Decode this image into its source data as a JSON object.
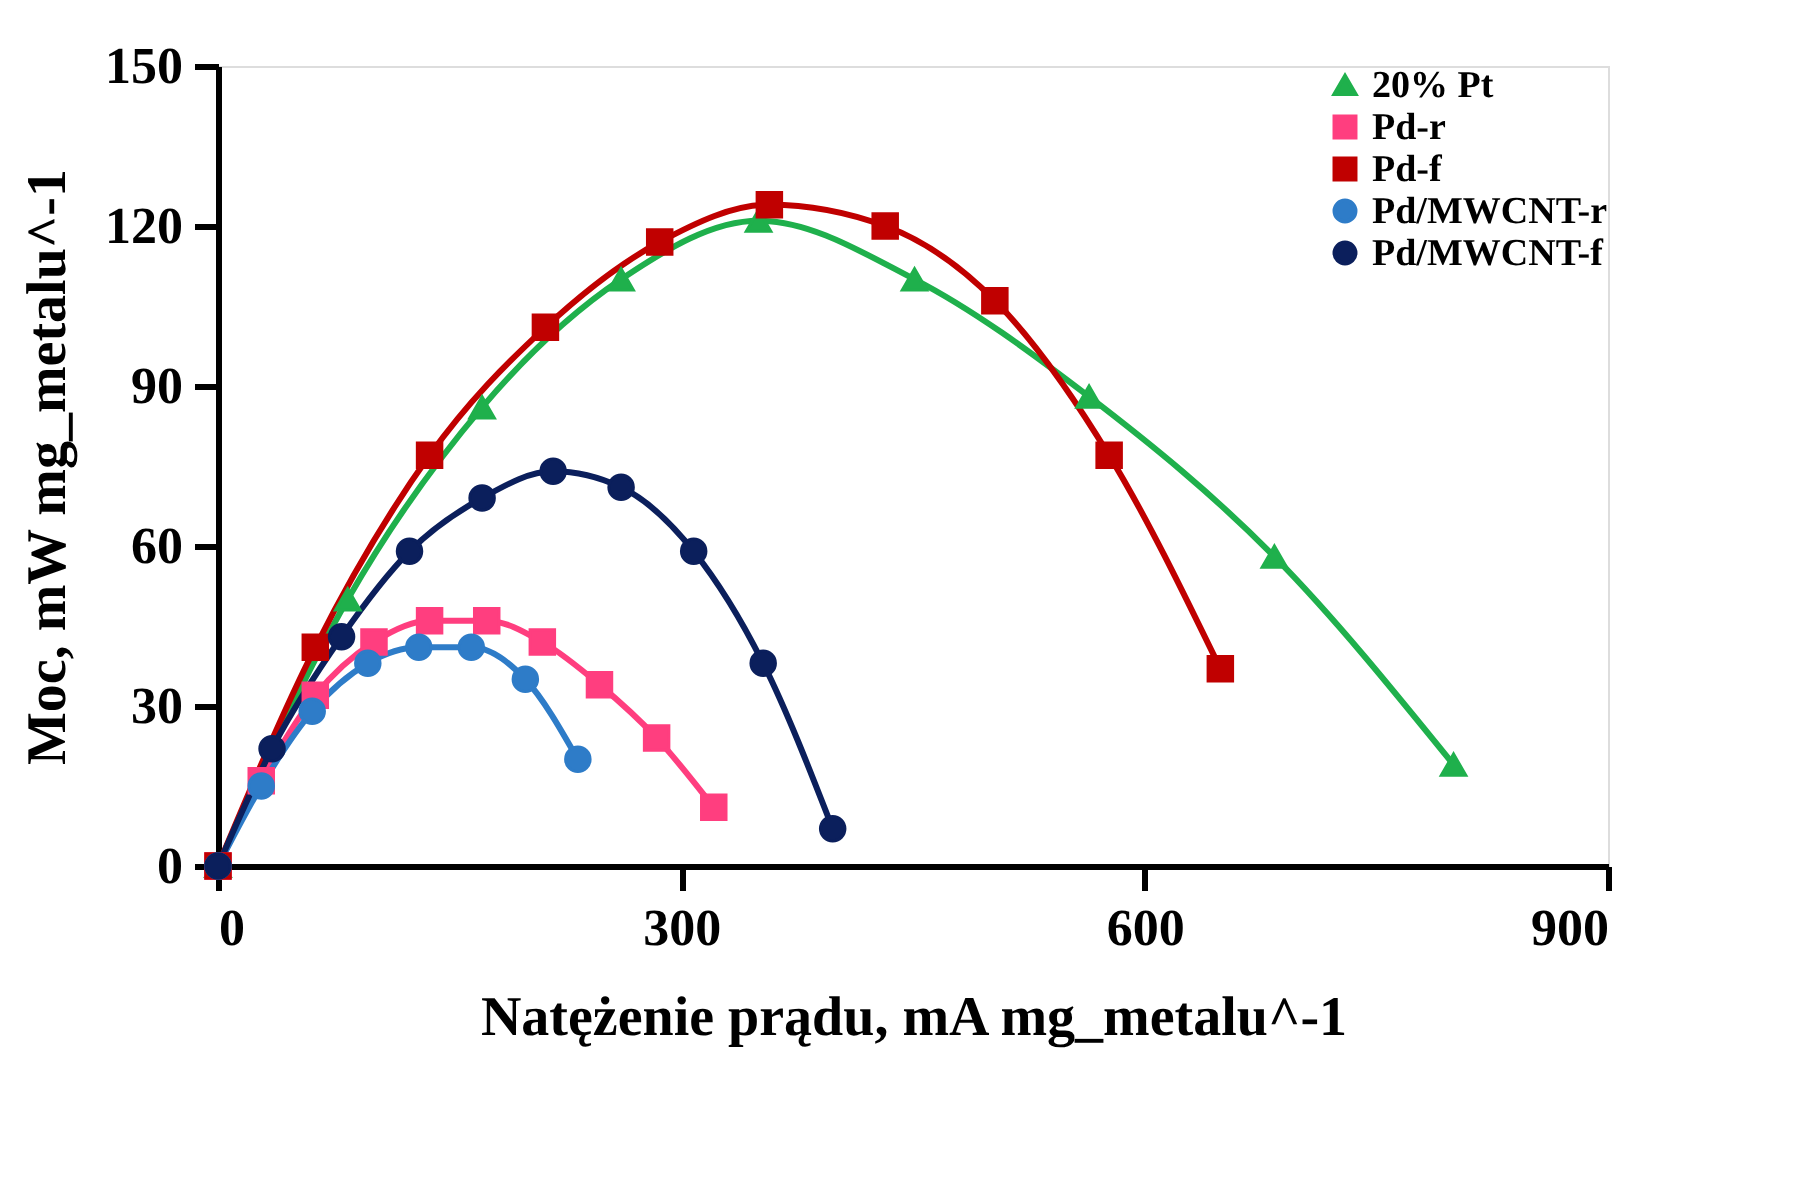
{
  "chart_data": {
    "type": "line",
    "xlabel": "Natężenie prądu, mA mg_metalu^-1",
    "ylabel": "Moc, mW mg_metalu^-1",
    "xlim": [
      0,
      900
    ],
    "xticks": [
      0,
      300,
      600,
      900
    ],
    "ylim": [
      0,
      150
    ],
    "yticks": [
      0,
      30,
      60,
      90,
      120,
      150
    ],
    "grid": false,
    "legend": "top right",
    "line_style": "solid",
    "series": [
      {
        "name": "20% Pt",
        "color": "#1fb04c",
        "marker": "triangle",
        "x": [
          0,
          84,
          171,
          261,
          350,
          451,
          564,
          684,
          800
        ],
        "values": [
          0,
          50,
          86,
          110,
          121,
          110,
          88,
          58,
          19
        ]
      },
      {
        "name": "Pd-r",
        "color": "#ff3e7f",
        "marker": "square",
        "x": [
          0,
          28,
          63,
          101,
          137,
          174,
          210,
          247,
          284,
          321
        ],
        "values": [
          0,
          16,
          32,
          42,
          46,
          46,
          42,
          34,
          24,
          11
        ]
      },
      {
        "name": "Pd-f",
        "color": "#c00000",
        "marker": "square",
        "x": [
          0,
          63,
          137,
          212,
          286,
          357,
          432,
          503,
          577,
          649
        ],
        "values": [
          0,
          41,
          77,
          101,
          117,
          124,
          120,
          106,
          77,
          37
        ]
      },
      {
        "name": "Pd/MWCNT-r",
        "color": "#2e7cc8",
        "marker": "circle",
        "x": [
          0,
          28,
          61,
          97,
          130,
          164,
          199,
          233
        ],
        "values": [
          0,
          15,
          29,
          38,
          41,
          41,
          35,
          20
        ]
      },
      {
        "name": "Pd/MWCNT-f",
        "color": "#0b1f5c",
        "marker": "circle",
        "x": [
          0,
          35,
          80,
          124,
          171,
          217,
          261,
          308,
          353,
          398
        ],
        "values": [
          0,
          22,
          43,
          59,
          69,
          74,
          71,
          59,
          38,
          7
        ]
      }
    ]
  }
}
